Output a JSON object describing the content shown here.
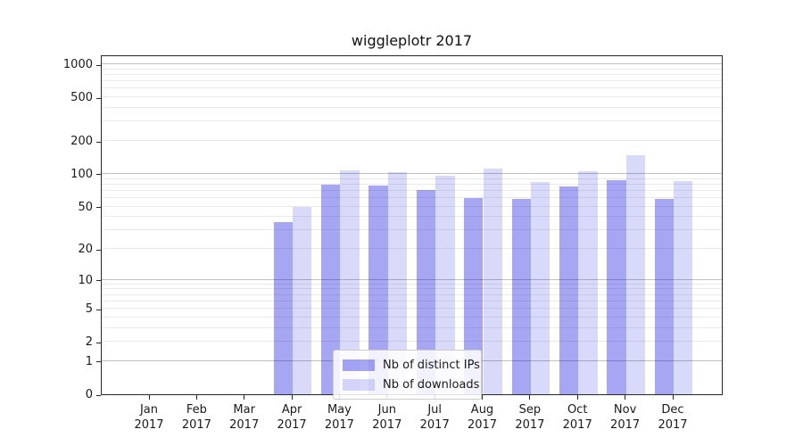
{
  "chart_data": {
    "type": "bar",
    "title": "wiggleplotr 2017",
    "categories": [
      "Jan",
      "Feb",
      "Mar",
      "Apr",
      "May",
      "Jun",
      "Jul",
      "Aug",
      "Sep",
      "Oct",
      "Nov",
      "Dec"
    ],
    "category_sublabel": "2017",
    "series": [
      {
        "name": "Nb of distinct IPs",
        "color": "rgba(0,0,220,0.35)",
        "values": [
          0,
          0,
          0,
          36,
          80,
          78,
          71,
          60,
          59,
          76,
          87,
          59
        ]
      },
      {
        "name": "Nb of downloads",
        "color": "rgba(0,0,220,0.15)",
        "values": [
          0,
          0,
          0,
          50,
          107,
          103,
          96,
          112,
          84,
          105,
          149,
          86
        ]
      }
    ],
    "xlabel": "",
    "ylabel": "",
    "yscale": "log1p",
    "yticks": [
      0,
      1,
      2,
      5,
      10,
      20,
      50,
      100,
      200,
      500,
      1000
    ],
    "ylim": [
      0,
      1230
    ],
    "grid": "horizontal",
    "major_grid_at": [
      1,
      10,
      100,
      1000
    ],
    "legend_position": "lower center",
    "colors": {
      "axis": "#262626",
      "major_grid": "#c0c0c0",
      "minor_grid": "#eaeaea",
      "background": "#ffffff"
    }
  }
}
